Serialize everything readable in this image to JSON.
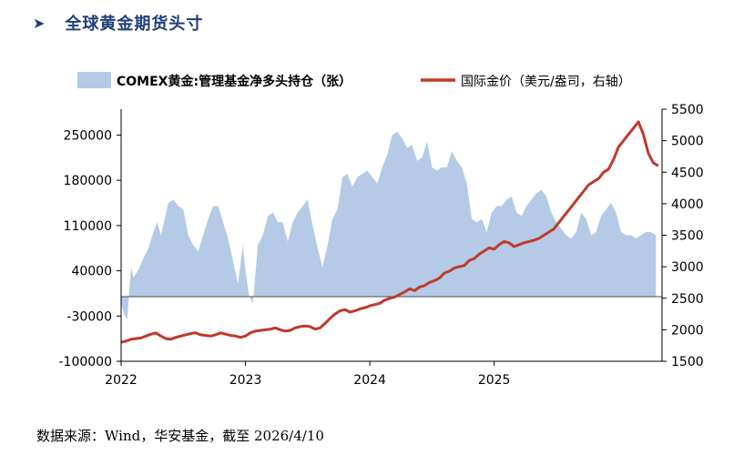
{
  "heading": {
    "arrow": "➤",
    "title": "全球黄金期货头寸"
  },
  "source": {
    "label": "数据来源：",
    "text": "Wind，华安基金，截至  2026/4/10"
  },
  "chart_data": {
    "type": "area+line",
    "legend": [
      {
        "label": "COMEX黄金:管理基金净多头持仓（张）",
        "kind": "area",
        "color": "#b4cae6"
      },
      {
        "label": "国际金价（美元/盎司，右轴）",
        "kind": "line",
        "color": "#c0392b"
      }
    ],
    "x_ticks": [
      "2022",
      "2023",
      "2024",
      "2025"
    ],
    "x_tick_values": [
      2022,
      2023,
      2024,
      2025
    ],
    "xlim": [
      2022.0,
      2026.35
    ],
    "left_axis": {
      "ticks": [
        "250000",
        "180000",
        "110000",
        "40000",
        "-30000",
        "-100000"
      ],
      "tick_values": [
        250000,
        180000,
        110000,
        40000,
        -30000,
        -100000
      ],
      "ylim": [
        -100000,
        290000
      ]
    },
    "right_axis": {
      "ticks": [
        "5500",
        "5000",
        "4500",
        "4000",
        "3500",
        "3000",
        "2500",
        "2000",
        "1500"
      ],
      "tick_values": [
        5500,
        5000,
        4500,
        4000,
        3500,
        3000,
        2500,
        2000,
        1500
      ],
      "ylim": [
        1500,
        5500
      ]
    },
    "area_series": {
      "name": "COMEX黄金:管理基金净多头持仓（张）",
      "x": [
        2022.0,
        2022.03,
        2022.05,
        2022.08,
        2022.1,
        2022.14,
        2022.18,
        2022.22,
        2022.26,
        2022.29,
        2022.32,
        2022.35,
        2022.38,
        2022.42,
        2022.46,
        2022.5,
        2022.54,
        2022.58,
        2022.62,
        2022.66,
        2022.7,
        2022.74,
        2022.78,
        2022.82,
        2022.86,
        2022.9,
        2022.94,
        2022.98,
        2023.0,
        2023.03,
        2023.06,
        2023.1,
        2023.14,
        2023.18,
        2023.22,
        2023.26,
        2023.3,
        2023.34,
        2023.38,
        2023.42,
        2023.46,
        2023.5,
        2023.54,
        2023.58,
        2023.62,
        2023.66,
        2023.7,
        2023.74,
        2023.78,
        2023.82,
        2023.86,
        2023.9,
        2023.94,
        2023.98,
        2024.02,
        2024.06,
        2024.1,
        2024.14,
        2024.18,
        2024.22,
        2024.26,
        2024.3,
        2024.34,
        2024.38,
        2024.42,
        2024.46,
        2024.5,
        2024.54,
        2024.58,
        2024.62,
        2024.66,
        2024.7,
        2024.74,
        2024.78,
        2024.82,
        2024.86,
        2024.9,
        2024.94,
        2024.98,
        2025.02,
        2025.06,
        2025.1,
        2025.14,
        2025.18,
        2025.22,
        2025.26,
        2025.3,
        2025.34,
        2025.38,
        2025.42,
        2025.46,
        2025.5,
        2025.54,
        2025.58,
        2025.62,
        2025.66,
        2025.7,
        2025.74,
        2025.78,
        2025.82,
        2025.86,
        2025.9,
        2025.94,
        2025.98,
        2026.02,
        2026.06,
        2026.1,
        2026.14,
        2026.18,
        2026.22,
        2026.26,
        2026.3
      ],
      "values": [
        -10000,
        -30000,
        -35000,
        45000,
        30000,
        42000,
        60000,
        75000,
        100000,
        115000,
        95000,
        120000,
        145000,
        150000,
        140000,
        135000,
        95000,
        80000,
        70000,
        95000,
        120000,
        140000,
        140000,
        115000,
        90000,
        55000,
        20000,
        80000,
        40000,
        0,
        -10000,
        80000,
        95000,
        125000,
        130000,
        115000,
        115000,
        85000,
        115000,
        130000,
        140000,
        150000,
        110000,
        75000,
        45000,
        80000,
        120000,
        135000,
        185000,
        190000,
        170000,
        185000,
        190000,
        195000,
        185000,
        175000,
        200000,
        220000,
        250000,
        255000,
        245000,
        230000,
        235000,
        210000,
        215000,
        240000,
        200000,
        195000,
        200000,
        200000,
        225000,
        210000,
        200000,
        175000,
        120000,
        115000,
        120000,
        100000,
        130000,
        140000,
        140000,
        150000,
        155000,
        130000,
        125000,
        140000,
        150000,
        160000,
        165000,
        155000,
        130000,
        115000,
        105000,
        95000,
        90000,
        100000,
        130000,
        120000,
        95000,
        100000,
        125000,
        135000,
        145000,
        130000,
        100000,
        95000,
        95000,
        90000,
        95000,
        100000,
        100000,
        95000
      ]
    },
    "line_series": {
      "name": "国际金价（美元/盎司，右轴）",
      "x": [
        2022.0,
        2022.04,
        2022.08,
        2022.12,
        2022.16,
        2022.2,
        2022.24,
        2022.28,
        2022.32,
        2022.36,
        2022.4,
        2022.44,
        2022.48,
        2022.52,
        2022.56,
        2022.6,
        2022.64,
        2022.68,
        2022.72,
        2022.76,
        2022.8,
        2022.84,
        2022.88,
        2022.92,
        2022.96,
        2023.0,
        2023.04,
        2023.08,
        2023.12,
        2023.16,
        2023.2,
        2023.24,
        2023.28,
        2023.32,
        2023.36,
        2023.4,
        2023.44,
        2023.48,
        2023.52,
        2023.56,
        2023.6,
        2023.64,
        2023.68,
        2023.72,
        2023.76,
        2023.8,
        2023.84,
        2023.88,
        2023.92,
        2023.96,
        2024.0,
        2024.04,
        2024.08,
        2024.12,
        2024.16,
        2024.2,
        2024.24,
        2024.28,
        2024.32,
        2024.36,
        2024.4,
        2024.44,
        2024.48,
        2024.52,
        2024.56,
        2024.6,
        2024.64,
        2024.68,
        2024.72,
        2024.76,
        2024.8,
        2024.84,
        2024.88,
        2024.92,
        2024.96,
        2025.0,
        2025.04,
        2025.08,
        2025.12,
        2025.16,
        2025.2,
        2025.24,
        2025.28,
        2025.32,
        2025.36,
        2025.4,
        2025.44,
        2025.48,
        2025.52,
        2025.56,
        2025.6,
        2025.64,
        2025.68,
        2025.72,
        2025.76,
        2025.8,
        2025.84,
        2025.88,
        2025.92,
        2025.96,
        2026.0,
        2026.04,
        2026.08,
        2026.12,
        2026.16,
        2026.2,
        2026.24,
        2026.28,
        2026.32
      ],
      "values": [
        1800,
        1820,
        1850,
        1860,
        1870,
        1900,
        1930,
        1950,
        1900,
        1860,
        1850,
        1880,
        1900,
        1920,
        1940,
        1950,
        1920,
        1910,
        1900,
        1920,
        1950,
        1930,
        1910,
        1900,
        1880,
        1900,
        1950,
        1980,
        1990,
        2000,
        2010,
        2030,
        2000,
        1980,
        1990,
        2030,
        2050,
        2060,
        2050,
        2010,
        2030,
        2100,
        2180,
        2250,
        2300,
        2320,
        2280,
        2300,
        2330,
        2350,
        2380,
        2400,
        2420,
        2470,
        2500,
        2520,
        2560,
        2600,
        2650,
        2620,
        2680,
        2700,
        2750,
        2780,
        2820,
        2900,
        2930,
        2980,
        3000,
        3020,
        3100,
        3130,
        3200,
        3250,
        3300,
        3280,
        3350,
        3400,
        3380,
        3320,
        3350,
        3380,
        3400,
        3420,
        3450,
        3500,
        3550,
        3600,
        3700,
        3800,
        3900,
        4000,
        4100,
        4200,
        4300,
        4350,
        4400,
        4500,
        4550,
        4700,
        4900,
        5000,
        5100,
        5200,
        5300,
        5100,
        4800,
        4650,
        4600
      ]
    }
  }
}
